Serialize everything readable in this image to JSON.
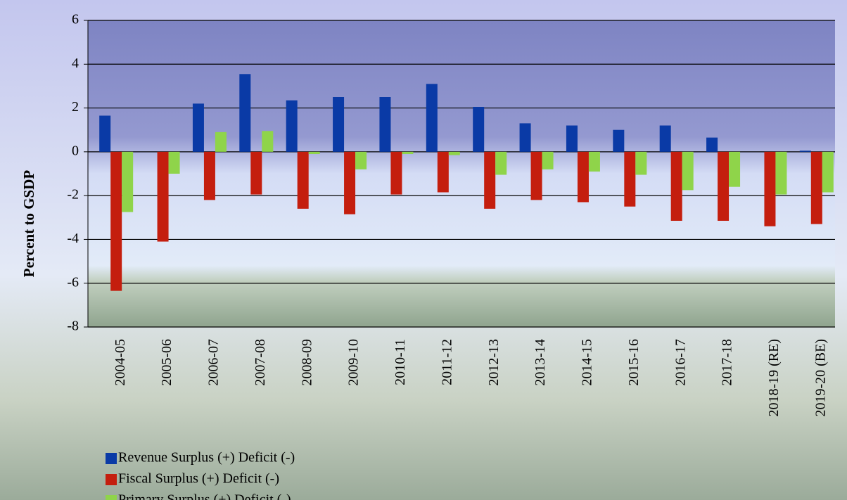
{
  "chart_data": {
    "type": "bar",
    "y_label": "Percent to GSDP",
    "categories": [
      "2004-05",
      "2005-06",
      "2006-07",
      "2007-08",
      "2008-09",
      "2009-10",
      "2010-11",
      "2011-12",
      "2012-13",
      "2013-14",
      "2014-15",
      "2015-16",
      "2016-17",
      "2017-18",
      "2018-19 (RE)",
      "2019-20 (BE)"
    ],
    "series": [
      {
        "name": "Revenue Surplus (+) Deficit (-)",
        "color": "#0a3aa6",
        "values": [
          1.65,
          0,
          2.2,
          3.55,
          2.35,
          2.5,
          2.5,
          3.1,
          2.05,
          1.3,
          1.2,
          1.0,
          1.2,
          0.65,
          0,
          0.05
        ]
      },
      {
        "name": "Fiscal Surplus (+) Deficit (-)",
        "color": "#c41e0e",
        "values": [
          -6.35,
          -4.1,
          -2.2,
          -1.95,
          -2.6,
          -2.85,
          -1.95,
          -1.85,
          -2.6,
          -2.2,
          -2.3,
          -2.5,
          -3.15,
          -3.15,
          -3.4,
          -3.3
        ]
      },
      {
        "name": "Primary Surplus (+) Deficit (-)",
        "color": "#8fd44a",
        "values": [
          -2.75,
          -1.0,
          0.9,
          0.95,
          -0.1,
          -0.8,
          -0.1,
          -0.15,
          -1.05,
          -0.8,
          -0.9,
          -1.05,
          -1.75,
          -1.6,
          -1.95,
          -1.85
        ]
      }
    ],
    "ylim": [
      -8,
      6
    ],
    "yticks": [
      -8,
      -6,
      -4,
      -2,
      0,
      2,
      4,
      6
    ],
    "grid": true
  }
}
